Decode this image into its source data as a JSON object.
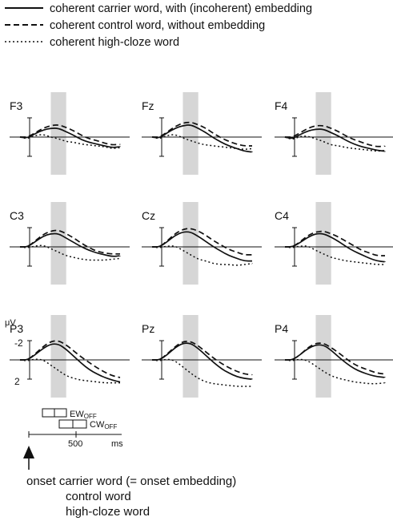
{
  "legend": {
    "items": [
      {
        "label": "coherent carrier word, with (incoherent) embedding",
        "dash": "solid"
      },
      {
        "label": "coherent control word, without embedding",
        "dash": "dashed"
      },
      {
        "label": "coherent high-cloze word",
        "dash": "dotted"
      }
    ]
  },
  "chart_data": {
    "type": "line",
    "x_unit": "ms",
    "x_range": [
      -100,
      1200
    ],
    "y_unit": "μV",
    "y_ticks": [
      -2,
      2
    ],
    "y_negative_up": true,
    "shaded_window_ms": [
      300,
      500
    ],
    "grid": false,
    "panels": [
      {
        "label": "F3",
        "x": [
          -100,
          0,
          100,
          200,
          300,
          400,
          500,
          600,
          700,
          800,
          900,
          1000,
          1100,
          1200
        ],
        "series": [
          {
            "name": "coherent carrier word, with (incoherent) embedding",
            "values": [
              0,
              0.1,
              -0.4,
              -0.8,
              -1.0,
              -1.0,
              -0.6,
              -0.2,
              0.3,
              0.6,
              0.8,
              1.0,
              1.2,
              1.1
            ]
          },
          {
            "name": "coherent control word, without embedding",
            "values": [
              0,
              0,
              -0.5,
              -1.0,
              -1.3,
              -1.4,
              -1.1,
              -0.7,
              -0.2,
              0.2,
              0.4,
              0.7,
              0.9,
              0.8
            ]
          },
          {
            "name": "coherent high-cloze word",
            "values": [
              0,
              0.2,
              -0.2,
              -0.3,
              0.0,
              0.2,
              0.5,
              0.6,
              0.8,
              0.9,
              1.0,
              1.1,
              1.3,
              1.2
            ]
          }
        ]
      },
      {
        "label": "Fz",
        "x": [
          -100,
          0,
          100,
          200,
          300,
          400,
          500,
          600,
          700,
          800,
          900,
          1000,
          1100,
          1200
        ],
        "series": [
          {
            "name": "coherent carrier word, with (incoherent) embedding",
            "values": [
              0,
              0.1,
              -0.5,
              -1.0,
              -1.3,
              -1.4,
              -1.0,
              -0.5,
              0.1,
              0.6,
              1.0,
              1.3,
              1.6,
              1.7
            ]
          },
          {
            "name": "coherent control word, without embedding",
            "values": [
              0,
              0,
              -0.6,
              -1.2,
              -1.6,
              -1.7,
              -1.4,
              -1.0,
              -0.4,
              0.1,
              0.5,
              0.8,
              1.0,
              1.0
            ]
          },
          {
            "name": "coherent high-cloze word",
            "values": [
              0,
              0.2,
              -0.2,
              -0.3,
              0.1,
              0.4,
              0.7,
              0.9,
              1.0,
              1.1,
              1.2,
              1.3,
              1.4,
              1.3
            ]
          }
        ]
      },
      {
        "label": "F4",
        "x": [
          -100,
          0,
          100,
          200,
          300,
          400,
          500,
          600,
          700,
          800,
          900,
          1000,
          1100,
          1200
        ],
        "series": [
          {
            "name": "coherent carrier word, with (incoherent) embedding",
            "values": [
              0,
              0.2,
              -0.3,
              -0.7,
              -0.9,
              -0.9,
              -0.5,
              -0.1,
              0.4,
              0.8,
              1.1,
              1.3,
              1.5,
              1.6
            ]
          },
          {
            "name": "coherent control word, without embedding",
            "values": [
              0,
              0,
              -0.5,
              -1.0,
              -1.3,
              -1.3,
              -1.0,
              -0.6,
              -0.1,
              0.3,
              0.6,
              0.9,
              1.1,
              1.0
            ]
          },
          {
            "name": "coherent high-cloze word",
            "values": [
              0,
              0.3,
              -0.1,
              -0.1,
              0.2,
              0.5,
              0.9,
              1.0,
              1.2,
              1.3,
              1.4,
              1.5,
              1.6,
              1.5
            ]
          }
        ]
      },
      {
        "label": "C3",
        "x": [
          -100,
          0,
          100,
          200,
          300,
          400,
          500,
          600,
          700,
          800,
          900,
          1000,
          1100,
          1200
        ],
        "series": [
          {
            "name": "coherent carrier word, with (incoherent) embedding",
            "values": [
              0,
              0,
              -0.6,
              -1.2,
              -1.5,
              -1.5,
              -1.0,
              -0.5,
              0,
              0.4,
              0.7,
              0.9,
              1.1,
              1.0
            ]
          },
          {
            "name": "coherent control word, without embedding",
            "values": [
              0,
              0,
              -0.7,
              -1.4,
              -1.8,
              -1.9,
              -1.5,
              -1.0,
              -0.4,
              0.1,
              0.5,
              0.7,
              0.8,
              0.8
            ]
          },
          {
            "name": "coherent high-cloze word",
            "values": [
              0,
              0.1,
              -0.1,
              -0.2,
              0.2,
              0.6,
              1.0,
              1.2,
              1.4,
              1.5,
              1.5,
              1.5,
              1.4,
              1.3
            ]
          }
        ]
      },
      {
        "label": "Cz",
        "x": [
          -100,
          0,
          100,
          200,
          300,
          400,
          500,
          600,
          700,
          800,
          900,
          1000,
          1100,
          1200
        ],
        "series": [
          {
            "name": "coherent carrier word, with (incoherent) embedding",
            "values": [
              0,
              0,
              -0.6,
              -1.3,
              -1.7,
              -1.7,
              -1.2,
              -0.6,
              0,
              0.5,
              1.0,
              1.3,
              1.6,
              1.6
            ]
          },
          {
            "name": "coherent control word, without embedding",
            "values": [
              0,
              0,
              -0.7,
              -1.5,
              -2.0,
              -2.1,
              -1.8,
              -1.3,
              -0.7,
              -0.2,
              0.3,
              0.6,
              0.9,
              0.9
            ]
          },
          {
            "name": "coherent high-cloze word",
            "values": [
              0,
              0.1,
              -0.1,
              -0.1,
              0.4,
              0.9,
              1.4,
              1.6,
              1.9,
              2.0,
              2.0,
              2.1,
              2.0,
              1.9
            ]
          }
        ]
      },
      {
        "label": "C4",
        "x": [
          -100,
          0,
          100,
          200,
          300,
          400,
          500,
          600,
          700,
          800,
          900,
          1000,
          1100,
          1200
        ],
        "series": [
          {
            "name": "coherent carrier word, with (incoherent) embedding",
            "values": [
              0,
              0,
              -0.5,
              -1.1,
              -1.5,
              -1.5,
              -1.1,
              -0.6,
              0,
              0.5,
              0.9,
              1.3,
              1.6,
              1.7
            ]
          },
          {
            "name": "coherent control word, without embedding",
            "values": [
              0,
              0,
              -0.6,
              -1.3,
              -1.7,
              -1.8,
              -1.5,
              -1.1,
              -0.6,
              -0.1,
              0.4,
              0.7,
              1.0,
              1.0
            ]
          },
          {
            "name": "coherent high-cloze word",
            "values": [
              0,
              0.1,
              -0.1,
              -0.1,
              0.4,
              0.8,
              1.2,
              1.4,
              1.6,
              1.7,
              1.8,
              1.9,
              2.0,
              2.0
            ]
          }
        ]
      },
      {
        "label": "P3",
        "x": [
          -100,
          0,
          100,
          200,
          300,
          400,
          500,
          600,
          700,
          800,
          900,
          1000,
          1100,
          1200
        ],
        "series": [
          {
            "name": "coherent carrier word, with (incoherent) embedding",
            "values": [
              0,
              0,
              -0.6,
              -1.3,
              -1.8,
              -1.8,
              -1.2,
              -0.4,
              0.4,
              1.1,
              1.6,
              2.0,
              2.3,
              2.5
            ]
          },
          {
            "name": "coherent control word, without embedding",
            "values": [
              0,
              0,
              -0.7,
              -1.5,
              -2.1,
              -2.2,
              -1.7,
              -1.0,
              -0.3,
              0.3,
              0.9,
              1.4,
              1.8,
              2.0
            ]
          },
          {
            "name": "coherent high-cloze word",
            "values": [
              0,
              0.1,
              -0.1,
              0.0,
              0.6,
              1.2,
              1.8,
              2.1,
              2.3,
              2.4,
              2.5,
              2.6,
              2.6,
              2.6
            ]
          }
        ]
      },
      {
        "label": "Pz",
        "x": [
          -100,
          0,
          100,
          200,
          300,
          400,
          500,
          600,
          700,
          800,
          900,
          1000,
          1100,
          1200
        ],
        "series": [
          {
            "name": "coherent carrier word, with (incoherent) embedding",
            "values": [
              0,
              0,
              -0.6,
              -1.4,
              -1.9,
              -1.9,
              -1.3,
              -0.5,
              0.3,
              1.0,
              1.5,
              1.9,
              2.1,
              2.2
            ]
          },
          {
            "name": "coherent control word, without embedding",
            "values": [
              0,
              0,
              -0.7,
              -1.5,
              -2.1,
              -2.1,
              -1.6,
              -0.9,
              -0.2,
              0.4,
              0.9,
              1.3,
              1.6,
              1.7
            ]
          },
          {
            "name": "coherent high-cloze word",
            "values": [
              0,
              0.1,
              -0.1,
              0.1,
              0.8,
              1.5,
              2.1,
              2.5,
              2.7,
              2.8,
              2.9,
              3.0,
              3.0,
              3.0
            ]
          }
        ]
      },
      {
        "label": "P4",
        "x": [
          -100,
          0,
          100,
          200,
          300,
          400,
          500,
          600,
          700,
          800,
          900,
          1000,
          1100,
          1200
        ],
        "series": [
          {
            "name": "coherent carrier word, with (incoherent) embedding",
            "values": [
              0,
              0,
              -0.6,
              -1.3,
              -1.7,
              -1.7,
              -1.1,
              -0.3,
              0.4,
              1.0,
              1.4,
              1.7,
              1.9,
              2.0
            ]
          },
          {
            "name": "coherent control word, without embedding",
            "values": [
              0,
              0,
              -0.6,
              -1.4,
              -1.9,
              -1.9,
              -1.4,
              -0.8,
              -0.1,
              0.5,
              0.9,
              1.2,
              1.5,
              1.6
            ]
          },
          {
            "name": "coherent high-cloze word",
            "values": [
              0,
              0.1,
              -0.1,
              0.1,
              0.7,
              1.3,
              1.8,
              2.1,
              2.3,
              2.5,
              2.6,
              2.7,
              2.7,
              2.6
            ]
          }
        ]
      }
    ]
  },
  "axis_labels": {
    "y_unit": "μV",
    "y_tick_top": "-2",
    "y_tick_bottom": "2",
    "x_tick": "500",
    "x_unit": "ms"
  },
  "offsets": {
    "ew": "EW",
    "ew_sub": "OFF",
    "cw": "CW",
    "cw_sub": "OFF"
  },
  "caption": {
    "line1": "onset carrier word (= onset embedding)",
    "line2": "control word",
    "line3": "high-cloze word"
  },
  "colors": {
    "line": "#111111",
    "shade": "#d6d6d6"
  }
}
